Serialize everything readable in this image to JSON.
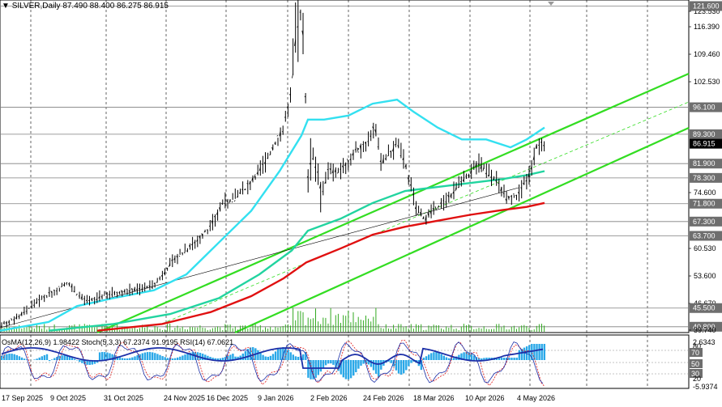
{
  "header": {
    "symbol": "SILVER,Daily",
    "ohlc": "87.490 88.400 86.275 86.915"
  },
  "indicators_title": "OsMA(12,26,9) 1.98422  Stoch(5,3,3) 67.2374 91.9195  RSI(14) 67.0621",
  "price_labels": [
    {
      "text": "123.530",
      "value": 123.53,
      "highlight": false
    },
    {
      "text": "121.600",
      "value": 121.6,
      "highlight": true
    },
    {
      "text": "116.390",
      "value": 116.39,
      "highlight": false
    },
    {
      "text": "109.460",
      "value": 109.46,
      "highlight": false
    },
    {
      "text": "102.530",
      "value": 102.53,
      "highlight": false
    },
    {
      "text": "96.100",
      "value": 96.1,
      "highlight": true
    },
    {
      "text": "89.300",
      "value": 89.3,
      "highlight": true
    },
    {
      "text": "86.915",
      "value": 86.915,
      "highlight": "current"
    },
    {
      "text": "81.900",
      "value": 81.9,
      "highlight": true
    },
    {
      "text": "78.300",
      "value": 78.3,
      "highlight": true
    },
    {
      "text": "74.600",
      "value": 74.6,
      "highlight": false
    },
    {
      "text": "71.800",
      "value": 71.8,
      "highlight": true
    },
    {
      "text": "67.300",
      "value": 67.3,
      "highlight": true
    },
    {
      "text": "63.700",
      "value": 63.7,
      "highlight": true
    },
    {
      "text": "60.530",
      "value": 60.53,
      "highlight": false
    },
    {
      "text": "53.600",
      "value": 53.6,
      "highlight": false
    },
    {
      "text": "46.670",
      "value": 46.67,
      "highlight": false
    },
    {
      "text": "45.500",
      "value": 45.5,
      "highlight": true
    },
    {
      "text": "40.800",
      "value": 40.8,
      "highlight": true
    },
    {
      "text": "39.740",
      "value": 39.74,
      "highlight": false
    }
  ],
  "indicator_labels": [
    "2.6343",
    "80",
    "70",
    "50",
    "30",
    "20",
    "-5.9374"
  ],
  "x_labels": [
    "17 Sep 2025",
    "9 Oct 2025",
    "31 Oct 2025",
    "24 Nov 2025",
    "16 Dec 2025",
    "9 Jan 2026",
    "2 Feb 2026",
    "24 Feb 2026",
    "18 Mar 2026",
    "10 Apr 2026",
    "4 May 2026"
  ],
  "colors": {
    "candles": "#000000",
    "ma_fast": "#33e0f0",
    "ma_mid": "#22d4a0",
    "ma_slow": "#e01010",
    "channel": "#33dd22",
    "hline": "#7f7f7f",
    "label_bg": "#6e6e6e",
    "current_bg": "#000000",
    "osma": "#2aa8e8",
    "stoch_main": "#1c2fa8",
    "stoch_signal": "#e01818",
    "rsi": "#1c2fa8"
  },
  "chart_data": {
    "type": "line",
    "title": "SILVER,Daily",
    "ylim": [
      39.74,
      123.53
    ],
    "series": [
      {
        "name": "SILVER,Daily",
        "x": [
          "2025-09-10",
          "2025-09-25",
          "2025-10-09",
          "2025-10-20",
          "2025-10-31",
          "2025-11-14",
          "2025-11-24",
          "2025-12-05",
          "2025-12-16",
          "2025-12-29",
          "2026-01-09",
          "2026-01-20",
          "2026-01-28",
          "2026-02-02",
          "2026-02-10",
          "2026-02-24",
          "2026-03-05",
          "2026-03-18",
          "2026-03-30",
          "2026-04-10",
          "2026-04-22",
          "2026-05-04",
          "2026-05-12"
        ],
        "values": [
          42.5,
          45.8,
          50.2,
          53.4,
          48.8,
          50.1,
          51.3,
          58.0,
          64.0,
          72.1,
          78.5,
          91.0,
          118.8,
          80.5,
          84.0,
          86.8,
          83.1,
          70.6,
          72.1,
          80.9,
          78.3,
          75.6,
          86.9
        ]
      }
    ]
  }
}
